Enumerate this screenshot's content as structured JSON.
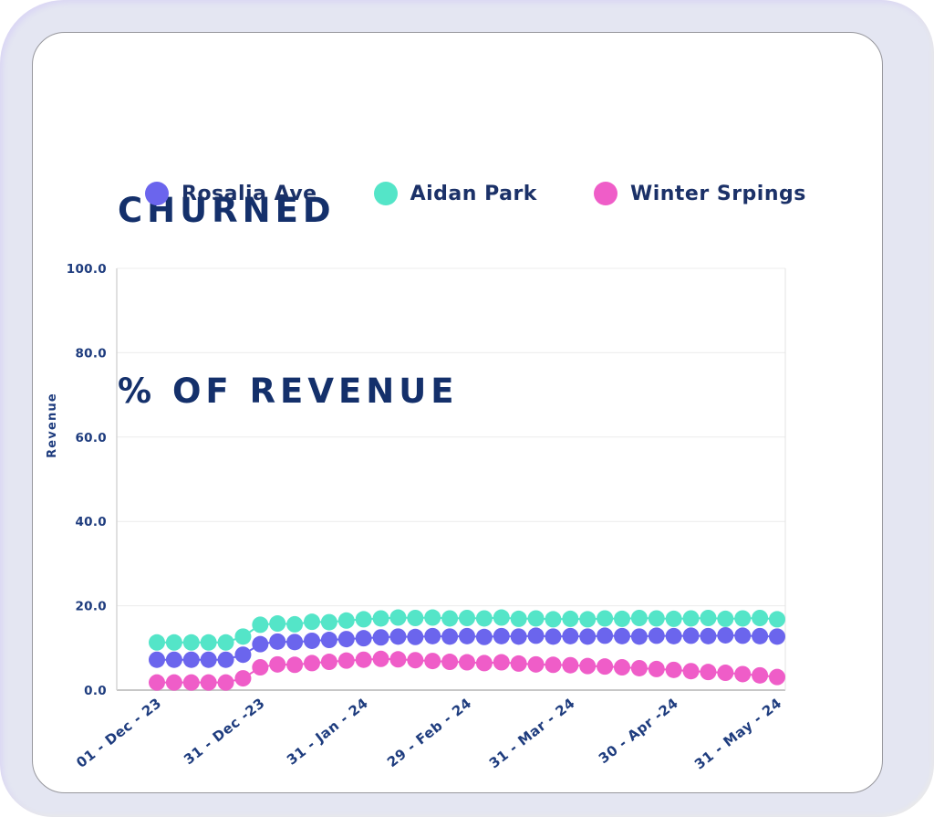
{
  "header": {
    "title_line1": "CHURNED",
    "title_line2": "% OF REVENUE"
  },
  "colors": {
    "page_background": "#E4E6F2",
    "card_background": "#FFFFFF",
    "card_border": "#97979D",
    "title_text": "#14306B",
    "legend_text": "#1B3168",
    "axis_tick_text": "#1E3C7E",
    "gridline": "#ECECEC",
    "axis_line_bottom": "#C7C7C7",
    "axis_line_left": "#D6D6D6",
    "axis_line_right": "#E3E3E3"
  },
  "chart_data": {
    "type": "line",
    "title": "CHURNED % OF REVENUE",
    "xlabel": "",
    "ylabel": "Revenue",
    "ylim": [
      0,
      100
    ],
    "yticks": [
      0,
      20,
      40,
      60,
      80,
      100
    ],
    "ytick_labels": [
      "0.0",
      "20.0",
      "40.0",
      "60.0",
      "80.0",
      "100.0"
    ],
    "xtick_labels": [
      "01 - Dec - 23",
      "31 - Dec -23",
      "31 - Jan - 24",
      "29 - Feb - 24",
      "31 - Mar - 24",
      "30 - Apr -24",
      "31 - May - 24"
    ],
    "xtick_indices": [
      0,
      6,
      12,
      18,
      24,
      30,
      36
    ],
    "grid": "horizontal",
    "legend_position": "top",
    "marker": "circle",
    "x": [
      "2023-12-01",
      "2023-12-06",
      "2023-12-11",
      "2023-12-16",
      "2023-12-21",
      "2023-12-26",
      "2023-12-31",
      "2024-01-05",
      "2024-01-10",
      "2024-01-15",
      "2024-01-20",
      "2024-01-25",
      "2024-01-30",
      "2024-02-04",
      "2024-02-09",
      "2024-02-14",
      "2024-02-19",
      "2024-02-24",
      "2024-02-29",
      "2024-03-05",
      "2024-03-10",
      "2024-03-15",
      "2024-03-20",
      "2024-03-25",
      "2024-03-30",
      "2024-04-04",
      "2024-04-09",
      "2024-04-14",
      "2024-04-19",
      "2024-04-24",
      "2024-04-29",
      "2024-05-04",
      "2024-05-09",
      "2024-05-14",
      "2024-05-19",
      "2024-05-24",
      "2024-05-29"
    ],
    "series": [
      {
        "name": "Rosalia Ave",
        "color": "#6B65ED",
        "values": [
          7.2,
          7.2,
          7.2,
          7.2,
          7.2,
          8.4,
          10.9,
          11.5,
          11.4,
          11.7,
          11.9,
          12.1,
          12.3,
          12.5,
          12.7,
          12.6,
          12.8,
          12.7,
          12.8,
          12.6,
          12.8,
          12.7,
          12.9,
          12.7,
          12.8,
          12.7,
          12.9,
          12.8,
          12.7,
          12.9,
          12.8,
          12.9,
          12.8,
          13.0,
          12.9,
          12.8,
          12.7
        ]
      },
      {
        "name": "Aidan Park",
        "color": "#54E5C8",
        "values": [
          11.3,
          11.3,
          11.3,
          11.3,
          11.3,
          12.7,
          15.5,
          15.8,
          15.6,
          16.2,
          16.1,
          16.5,
          16.8,
          17.0,
          17.2,
          17.1,
          17.2,
          17.0,
          17.1,
          17.0,
          17.2,
          16.9,
          17.0,
          16.8,
          16.9,
          16.8,
          17.0,
          16.9,
          17.1,
          17.0,
          16.9,
          17.0,
          17.1,
          16.9,
          17.0,
          17.1,
          16.8
        ]
      },
      {
        "name": "Winter Srpings",
        "color": "#EF5DC8",
        "values": [
          1.8,
          1.8,
          1.8,
          1.8,
          1.8,
          2.8,
          5.4,
          6.1,
          6.0,
          6.4,
          6.7,
          7.0,
          7.2,
          7.4,
          7.3,
          7.1,
          6.9,
          6.7,
          6.6,
          6.4,
          6.6,
          6.3,
          6.1,
          6.0,
          5.9,
          5.7,
          5.6,
          5.4,
          5.2,
          5.0,
          4.8,
          4.5,
          4.3,
          4.1,
          3.8,
          3.5,
          3.1
        ]
      }
    ],
    "legend_order": [
      "Rosalia Ave",
      "Aidan Park",
      "Winter Srpings"
    ]
  }
}
